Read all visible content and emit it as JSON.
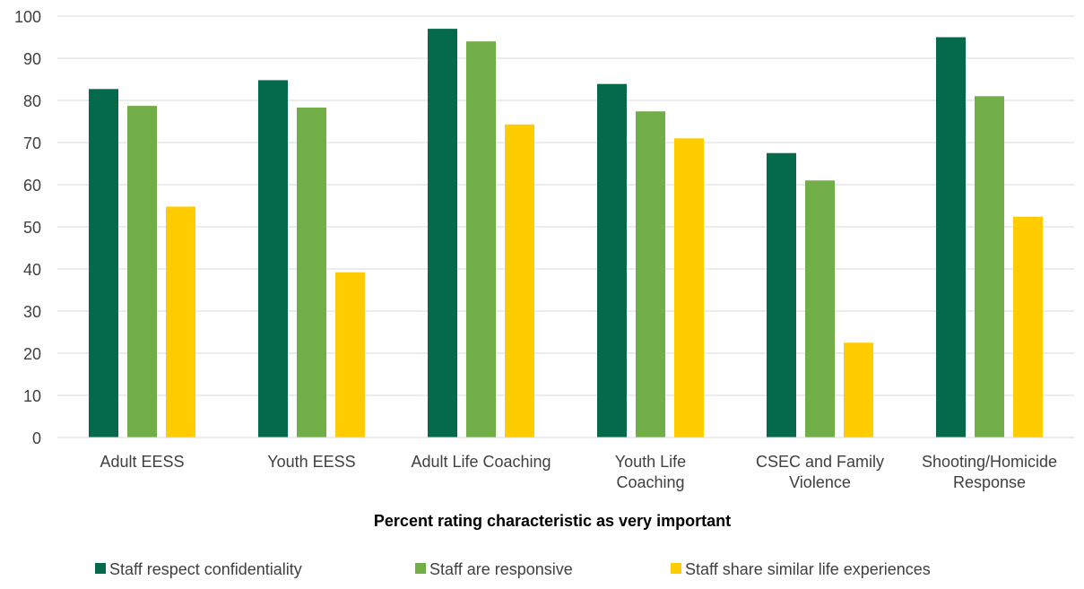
{
  "chart_data": {
    "type": "bar",
    "categories": [
      "Adult EESS",
      "Youth EESS",
      "Adult Life Coaching",
      [
        "Youth Life",
        "Coaching"
      ],
      [
        "CSEC and Family",
        "Violence"
      ],
      [
        "Shooting/Homicide",
        "Response"
      ]
    ],
    "series": [
      {
        "name": "Staff respect confidentiality",
        "color": "#056a4c",
        "values": [
          82.7,
          84.8,
          97.0,
          83.9,
          67.5,
          95.0
        ]
      },
      {
        "name": "Staff are responsive",
        "color": "#72ae47",
        "values": [
          78.7,
          78.3,
          94.0,
          77.4,
          61.0,
          81.0
        ]
      },
      {
        "name": "Staff share similar life experiences",
        "color": "#ffcc00",
        "values": [
          54.8,
          39.2,
          74.3,
          71.0,
          22.5,
          52.4
        ]
      }
    ],
    "title": "",
    "xlabel": "Percent rating characteristic as very important",
    "ylabel": "",
    "ylim": [
      0,
      100
    ],
    "yticks": [
      0,
      10,
      20,
      30,
      40,
      50,
      60,
      70,
      80,
      90,
      100
    ],
    "grid": true,
    "legend": "bottom"
  }
}
